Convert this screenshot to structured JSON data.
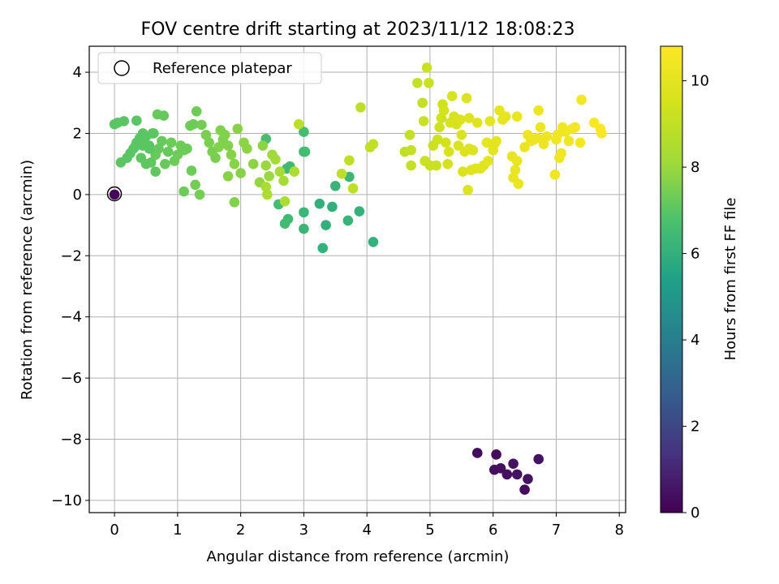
{
  "chart_data": {
    "type": "scatter",
    "title": "FOV centre drift starting at 2023/11/12 18:08:23",
    "xlabel": "Angular distance from reference (arcmin)",
    "ylabel": "Rotation from reference (arcmin)",
    "xlim": [
      -0.4,
      8.1
    ],
    "ylim": [
      -10.4,
      4.85
    ],
    "xticks": [
      0,
      1,
      2,
      3,
      4,
      5,
      6,
      7,
      8
    ],
    "yticks": [
      -10,
      -8,
      -6,
      -4,
      -2,
      0,
      2,
      4
    ],
    "grid": true,
    "legend": {
      "position": "top-left",
      "entries": [
        "Reference platepar"
      ]
    },
    "reference_point": {
      "x": 0,
      "y": 0,
      "hours": 0.1
    },
    "colorbar": {
      "label": "Hours from first FF file",
      "range": [
        0,
        10.8
      ],
      "ticks": [
        0,
        2,
        4,
        6,
        8,
        10
      ],
      "colormap": "viridis"
    },
    "points": [
      [
        5.75,
        -8.45,
        0.3
      ],
      [
        6.05,
        -8.5,
        0.3
      ],
      [
        6.02,
        -9.0,
        0.4
      ],
      [
        6.12,
        -8.95,
        0.4
      ],
      [
        6.22,
        -9.15,
        0.4
      ],
      [
        6.32,
        -8.8,
        0.5
      ],
      [
        6.38,
        -9.15,
        0.5
      ],
      [
        6.55,
        -9.3,
        0.5
      ],
      [
        6.5,
        -9.65,
        0.3
      ],
      [
        6.72,
        -8.65,
        0.5
      ],
      [
        3.3,
        -1.75,
        6.1
      ],
      [
        3.25,
        -0.3,
        6.0
      ],
      [
        3.35,
        -1.0,
        6.0
      ],
      [
        3.45,
        -0.4,
        6.0
      ],
      [
        3.5,
        0.28,
        6.2
      ],
      [
        3.7,
        -0.85,
        6.2
      ],
      [
        3.72,
        0.58,
        6.3
      ],
      [
        3.88,
        -0.55,
        6.1
      ],
      [
        4.1,
        -1.55,
        6.1
      ],
      [
        3.0,
        -0.58,
        6.3
      ],
      [
        3.0,
        -1.12,
        6.3
      ],
      [
        2.7,
        -0.95,
        6.5
      ],
      [
        2.75,
        -0.8,
        6.5
      ],
      [
        2.6,
        -0.32,
        6.6
      ],
      [
        2.73,
        0.85,
        6.4
      ],
      [
        2.78,
        0.92,
        6.4
      ],
      [
        2.4,
        1.82,
        6.6
      ],
      [
        3.0,
        2.05,
        6.6
      ],
      [
        3.0,
        1.4,
        6.5
      ],
      [
        3.02,
        1.4,
        6.6
      ],
      [
        0.0,
        2.3,
        7.0
      ],
      [
        0.05,
        2.35,
        7.0
      ],
      [
        0.15,
        2.4,
        7.0
      ],
      [
        0.35,
        2.42,
        7.0
      ],
      [
        0.1,
        1.05,
        7.0
      ],
      [
        0.2,
        1.2,
        7.0
      ],
      [
        0.25,
        1.35,
        7.0
      ],
      [
        0.3,
        1.5,
        7.0
      ],
      [
        0.35,
        1.7,
        7.0
      ],
      [
        0.4,
        1.85,
        7.0
      ],
      [
        0.45,
        2.0,
        7.0
      ],
      [
        0.5,
        1.9,
        7.0
      ],
      [
        0.55,
        1.6,
        7.0
      ],
      [
        0.6,
        2.0,
        7.1
      ],
      [
        0.42,
        1.2,
        7.1
      ],
      [
        0.5,
        1.0,
        7.1
      ],
      [
        0.58,
        1.05,
        7.1
      ],
      [
        0.65,
        1.3,
        7.2
      ],
      [
        0.7,
        1.5,
        7.2
      ],
      [
        0.68,
        2.62,
        7.2
      ],
      [
        0.78,
        2.58,
        7.2
      ],
      [
        0.75,
        1.75,
        7.2
      ],
      [
        0.8,
        1.0,
        7.2
      ],
      [
        0.85,
        1.4,
        7.2
      ],
      [
        0.9,
        1.7,
        7.3
      ],
      [
        0.95,
        1.1,
        7.3
      ],
      [
        1.0,
        1.3,
        7.3
      ],
      [
        1.05,
        1.6,
        7.3
      ],
      [
        1.1,
        1.45,
        7.3
      ],
      [
        1.15,
        1.5,
        7.3
      ],
      [
        1.2,
        2.25,
        7.3
      ],
      [
        1.25,
        2.3,
        7.3
      ],
      [
        1.3,
        2.72,
        7.3
      ],
      [
        1.22,
        0.78,
        7.3
      ],
      [
        1.1,
        0.1,
        7.3
      ],
      [
        1.28,
        0.32,
        7.4
      ],
      [
        1.35,
        0.0,
        7.4
      ],
      [
        1.38,
        2.28,
        7.4
      ],
      [
        1.45,
        1.95,
        7.5
      ],
      [
        1.5,
        1.7,
        7.5
      ],
      [
        1.55,
        1.4,
        7.5
      ],
      [
        1.6,
        1.2,
        7.5
      ],
      [
        1.65,
        1.55,
        7.6
      ],
      [
        1.68,
        2.1,
        7.6
      ],
      [
        1.72,
        1.8,
        7.6
      ],
      [
        1.75,
        1.95,
        7.6
      ],
      [
        1.8,
        1.6,
        7.6
      ],
      [
        1.85,
        1.3,
        7.7
      ],
      [
        1.9,
        1.0,
        7.7
      ],
      [
        1.95,
        2.15,
        7.7
      ],
      [
        2.0,
        0.7,
        7.7
      ],
      [
        2.05,
        1.7,
        7.8
      ],
      [
        2.1,
        1.5,
        7.8
      ],
      [
        1.8,
        0.6,
        7.7
      ],
      [
        1.9,
        -0.25,
        7.6
      ],
      [
        2.2,
        1.0,
        7.8
      ],
      [
        2.3,
        0.4,
        7.9
      ],
      [
        2.35,
        1.6,
        7.8
      ],
      [
        2.4,
        0.95,
        8.0
      ],
      [
        2.45,
        0.6,
        8.0
      ],
      [
        2.5,
        1.3,
        8.1
      ],
      [
        2.55,
        1.15,
        8.2
      ],
      [
        2.62,
        0.75,
        8.2
      ],
      [
        2.68,
        0.45,
        8.3
      ],
      [
        2.7,
        -0.22,
        8.4
      ],
      [
        2.85,
        0.75,
        8.4
      ],
      [
        2.4,
        0.25,
        8.4
      ],
      [
        2.42,
        0.0,
        8.4
      ],
      [
        0.45,
        1.6,
        7.0
      ],
      [
        0.55,
        1.5,
        7.0
      ],
      [
        0.65,
        0.75,
        7.1
      ],
      [
        0.62,
        2.0,
        7.0
      ],
      [
        0.32,
        1.55,
        7.0
      ],
      [
        2.92,
        2.3,
        8.8
      ],
      [
        3.9,
        2.85,
        8.9
      ],
      [
        3.72,
        1.12,
        8.9
      ],
      [
        3.6,
        0.68,
        8.9
      ],
      [
        3.78,
        0.2,
        8.9
      ],
      [
        4.05,
        1.55,
        9.0
      ],
      [
        4.1,
        1.65,
        9.0
      ],
      [
        4.6,
        1.4,
        9.0
      ],
      [
        4.68,
        1.95,
        9.1
      ],
      [
        4.7,
        1.45,
        9.1
      ],
      [
        4.7,
        0.95,
        9.1
      ],
      [
        4.8,
        3.65,
        9.1
      ],
      [
        4.88,
        3.0,
        9.1
      ],
      [
        4.9,
        2.4,
        9.2
      ],
      [
        4.95,
        4.15,
        9.2
      ],
      [
        4.98,
        3.65,
        9.2
      ],
      [
        4.92,
        1.1,
        9.2
      ],
      [
        5.0,
        0.95,
        9.2
      ],
      [
        5.05,
        1.6,
        9.3
      ],
      [
        5.1,
        0.95,
        9.3
      ],
      [
        5.12,
        1.8,
        9.4
      ],
      [
        5.15,
        2.2,
        9.4
      ],
      [
        5.18,
        2.5,
        9.4
      ],
      [
        5.2,
        2.95,
        9.4
      ],
      [
        5.22,
        2.75,
        9.5
      ],
      [
        5.25,
        1.7,
        9.5
      ],
      [
        5.28,
        1.0,
        9.5
      ],
      [
        5.3,
        1.4,
        9.6
      ],
      [
        5.32,
        2.35,
        9.6
      ],
      [
        5.35,
        3.22,
        9.6
      ],
      [
        5.38,
        2.55,
        9.6
      ],
      [
        5.42,
        2.3,
        9.6
      ],
      [
        5.45,
        1.6,
        9.7
      ],
      [
        5.48,
        2.45,
        9.7
      ],
      [
        5.5,
        1.95,
        9.7
      ],
      [
        5.52,
        0.75,
        9.7
      ],
      [
        5.55,
        1.4,
        9.8
      ],
      [
        5.58,
        3.15,
        9.8
      ],
      [
        5.6,
        0.15,
        9.8
      ],
      [
        5.62,
        2.5,
        9.8
      ],
      [
        5.62,
        1.5,
        9.8
      ],
      [
        5.65,
        0.8,
        9.8
      ],
      [
        5.68,
        1.45,
        9.8
      ],
      [
        5.72,
        0.85,
        9.9
      ],
      [
        5.75,
        2.35,
        9.9
      ],
      [
        5.8,
        0.85,
        9.9
      ],
      [
        5.85,
        0.95,
        9.9
      ],
      [
        5.9,
        1.7,
        10.0
      ],
      [
        5.92,
        1.1,
        10.0
      ],
      [
        5.95,
        2.4,
        10.0
      ],
      [
        6.0,
        1.45,
        10.0
      ],
      [
        6.02,
        1.65,
        10.0
      ],
      [
        6.05,
        1.75,
        10.0
      ],
      [
        6.1,
        2.75,
        10.1
      ],
      [
        6.15,
        2.45,
        10.1
      ],
      [
        6.2,
        2.55,
        10.1
      ],
      [
        6.3,
        1.25,
        10.1
      ],
      [
        6.32,
        0.55,
        10.1
      ],
      [
        6.35,
        0.8,
        10.2
      ],
      [
        6.38,
        1.1,
        10.2
      ],
      [
        6.4,
        0.35,
        10.2
      ],
      [
        6.38,
        2.55,
        10.2
      ],
      [
        6.5,
        1.55,
        10.2
      ],
      [
        6.55,
        1.95,
        10.3
      ],
      [
        6.6,
        1.75,
        10.3
      ],
      [
        6.7,
        1.85,
        10.3
      ],
      [
        6.72,
        2.75,
        10.3
      ],
      [
        6.75,
        2.2,
        10.3
      ],
      [
        6.8,
        1.65,
        10.3
      ],
      [
        6.85,
        1.9,
        10.3
      ],
      [
        6.98,
        0.65,
        10.4
      ],
      [
        7.0,
        1.8,
        10.4
      ],
      [
        7.05,
        1.2,
        10.4
      ],
      [
        7.08,
        1.35,
        10.4
      ],
      [
        7.1,
        2.2,
        10.4
      ],
      [
        7.15,
        2.05,
        10.4
      ],
      [
        7.2,
        1.75,
        10.4
      ],
      [
        7.25,
        2.15,
        10.5
      ],
      [
        7.3,
        2.2,
        10.5
      ],
      [
        7.38,
        1.7,
        10.5
      ],
      [
        7.4,
        3.1,
        10.5
      ],
      [
        7.6,
        2.35,
        10.7
      ],
      [
        7.7,
        2.15,
        10.7
      ],
      [
        7.72,
        2.0,
        10.7
      ],
      [
        6.65,
        1.8,
        10.3
      ],
      [
        7.02,
        1.95,
        10.4
      ]
    ]
  }
}
